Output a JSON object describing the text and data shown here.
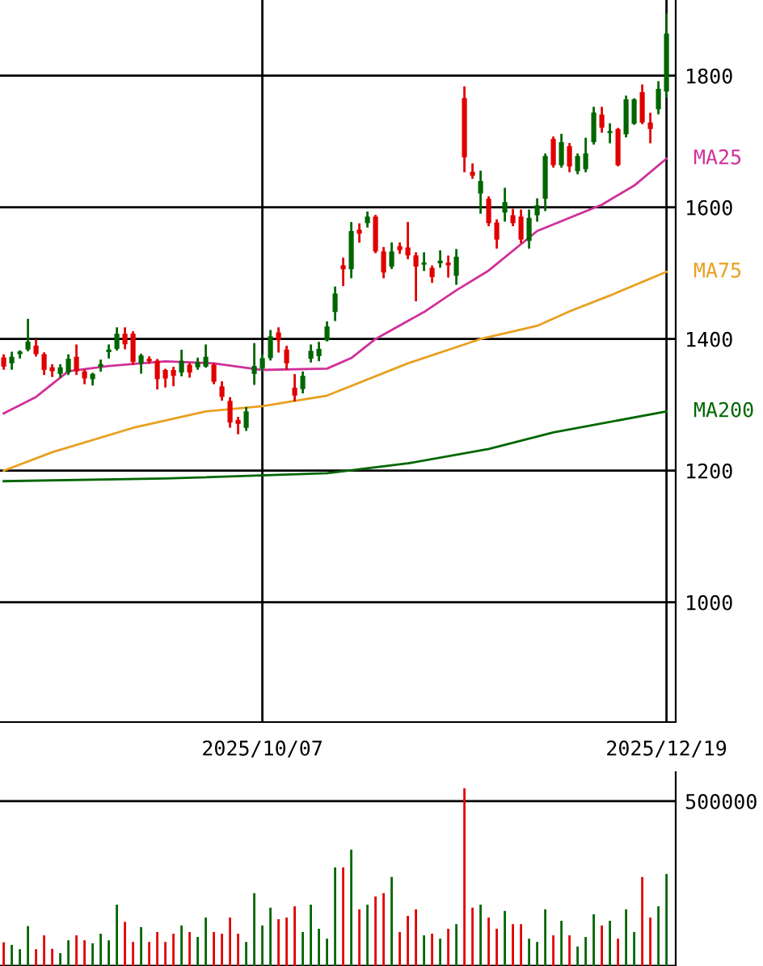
{
  "chart_data": [
    {
      "type": "candlestick",
      "categories": [
        null,
        null,
        null,
        null,
        null,
        null,
        null,
        null,
        null,
        null,
        null,
        null,
        null,
        null,
        null,
        null,
        null,
        null,
        null,
        null,
        null,
        null,
        null,
        null,
        null,
        null,
        null,
        null,
        null,
        null,
        null,
        null,
        "2025/10/07",
        null,
        null,
        null,
        null,
        null,
        null,
        null,
        null,
        null,
        null,
        null,
        null,
        null,
        null,
        null,
        null,
        null,
        null,
        null,
        null,
        null,
        null,
        null,
        null,
        null,
        null,
        null,
        null,
        null,
        null,
        null,
        null,
        null,
        null,
        null,
        null,
        null,
        null,
        null,
        null,
        null,
        null,
        null,
        null,
        null,
        null,
        null,
        null,
        null,
        "2025/12/19"
      ],
      "ohlc": [
        [
          1372,
          1375,
          1355,
          1358
        ],
        [
          1363,
          1379,
          1355,
          1373
        ],
        [
          1377,
          1381,
          1372,
          1381
        ],
        [
          1384,
          1429,
          1383,
          1396
        ],
        [
          1390,
          1398,
          1375,
          1377
        ],
        [
          1377,
          1378,
          1347,
          1353
        ],
        [
          1357,
          1360,
          1344,
          1351
        ],
        [
          1347,
          1360,
          1343,
          1357
        ],
        [
          1349,
          1375,
          1347,
          1370
        ],
        [
          1373,
          1390,
          1347,
          1351
        ],
        [
          1351,
          1352,
          1333,
          1340
        ],
        [
          1339,
          1347,
          1331,
          1347
        ],
        [
          1358,
          1367,
          1352,
          1362
        ],
        [
          1380,
          1390,
          1372,
          1384
        ],
        [
          1385,
          1416,
          1384,
          1408
        ],
        [
          1408,
          1416,
          1386,
          1392
        ],
        [
          1408,
          1410,
          1362,
          1365
        ],
        [
          1363,
          1376,
          1349,
          1375
        ],
        [
          1370,
          1372,
          1364,
          1366
        ],
        [
          1367,
          1368,
          1325,
          1339
        ],
        [
          1353,
          1353,
          1328,
          1340
        ],
        [
          1353,
          1356,
          1330,
          1344
        ],
        [
          1349,
          1382,
          1345,
          1367
        ],
        [
          1361,
          1362,
          1343,
          1349
        ],
        [
          1357,
          1370,
          1355,
          1365
        ],
        [
          1358,
          1390,
          1358,
          1373
        ],
        [
          1361,
          1362,
          1333,
          1335
        ],
        [
          1328,
          1334,
          1308,
          1312
        ],
        [
          1306,
          1310,
          1267,
          1273
        ],
        [
          1277,
          1280,
          1257,
          1271
        ],
        [
          1265,
          1295,
          1262,
          1290
        ],
        [
          1347,
          1392,
          1332,
          1359
        ],
        [
          1355,
          1375,
          1352,
          1371
        ],
        [
          1371,
          1412,
          1369,
          1404
        ],
        [
          1410,
          1416,
          1381,
          1398
        ],
        [
          1384,
          1388,
          1355,
          1363
        ],
        [
          1326,
          1345,
          1307,
          1314
        ],
        [
          1324,
          1349,
          1319,
          1344
        ],
        [
          1370,
          1390,
          1366,
          1382
        ],
        [
          1374,
          1394,
          1368,
          1385
        ],
        [
          1398,
          1425,
          1398,
          1419
        ],
        [
          1441,
          1478,
          1429,
          1469
        ],
        [
          1512,
          1522,
          1482,
          1506
        ],
        [
          1506,
          1576,
          1494,
          1564
        ],
        [
          1566,
          1574,
          1548,
          1560
        ],
        [
          1576,
          1592,
          1571,
          1586
        ],
        [
          1586,
          1587,
          1532,
          1533
        ],
        [
          1533,
          1538,
          1494,
          1501
        ],
        [
          1510,
          1545,
          1508,
          1533
        ],
        [
          1541,
          1545,
          1531,
          1535
        ],
        [
          1539,
          1576,
          1523,
          1527
        ],
        [
          1527,
          1530,
          1459,
          1510
        ],
        [
          1513,
          1530,
          1505,
          1516
        ],
        [
          1508,
          1510,
          1487,
          1494
        ],
        [
          1515,
          1533,
          1510,
          1519
        ],
        [
          1516,
          1525,
          1495,
          1512
        ],
        [
          1496,
          1535,
          1484,
          1525
        ],
        [
          1766,
          1782,
          1655,
          1676
        ],
        [
          1654,
          1665,
          1645,
          1648
        ],
        [
          1621,
          1654,
          1592,
          1640
        ],
        [
          1613,
          1615,
          1573,
          1576
        ],
        [
          1577,
          1580,
          1539,
          1551
        ],
        [
          1592,
          1628,
          1580,
          1608
        ],
        [
          1588,
          1596,
          1573,
          1576
        ],
        [
          1586,
          1595,
          1547,
          1551
        ],
        [
          1549,
          1595,
          1539,
          1584
        ],
        [
          1588,
          1612,
          1580,
          1603
        ],
        [
          1613,
          1680,
          1596,
          1678
        ],
        [
          1704,
          1706,
          1662,
          1664
        ],
        [
          1664,
          1710,
          1662,
          1699
        ],
        [
          1693,
          1696,
          1655,
          1662
        ],
        [
          1655,
          1680,
          1652,
          1678
        ],
        [
          1658,
          1704,
          1655,
          1682
        ],
        [
          1699,
          1751,
          1697,
          1744
        ],
        [
          1741,
          1751,
          1715,
          1721
        ],
        [
          1713,
          1726,
          1699,
          1716
        ],
        [
          1719,
          1719,
          1664,
          1664
        ],
        [
          1711,
          1768,
          1708,
          1764
        ],
        [
          1727,
          1764,
          1727,
          1764
        ],
        [
          1775,
          1785,
          1728,
          1729
        ],
        [
          1729,
          1742,
          1699,
          1719
        ],
        [
          1749,
          1790,
          1743,
          1780
        ],
        [
          1776,
          1893,
          1768,
          1864
        ]
      ],
      "colors": [
        "#e00000",
        "#006600",
        "#006600",
        "#006600",
        "#e00000",
        "#e00000",
        "#e00000",
        "#006600",
        "#006600",
        "#e00000",
        "#e00000",
        "#006600",
        "#006600",
        "#006600",
        "#006600",
        "#e00000",
        "#e00000",
        "#006600",
        "#e00000",
        "#e00000",
        "#e00000",
        "#e00000",
        "#006600",
        "#e00000",
        "#006600",
        "#006600",
        "#e00000",
        "#e00000",
        "#e00000",
        "#e00000",
        "#006600",
        "#006600",
        "#006600",
        "#006600",
        "#e00000",
        "#e00000",
        "#e00000",
        "#006600",
        "#006600",
        "#006600",
        "#006600",
        "#006600",
        "#e00000",
        "#006600",
        "#e00000",
        "#006600",
        "#e00000",
        "#e00000",
        "#006600",
        "#e00000",
        "#e00000",
        "#e00000",
        "#006600",
        "#e00000",
        "#006600",
        "#e00000",
        "#006600",
        "#e00000",
        "#e00000",
        "#006600",
        "#e00000",
        "#e00000",
        "#006600",
        "#e00000",
        "#e00000",
        "#006600",
        "#006600",
        "#006600",
        "#e00000",
        "#006600",
        "#e00000",
        "#006600",
        "#006600",
        "#006600",
        "#e00000",
        "#006600",
        "#e00000",
        "#006600",
        "#006600",
        "#e00000",
        "#e00000",
        "#006600",
        "#006600"
      ],
      "series": [
        {
          "name": "MA25",
          "type": "line",
          "color": "#d0309a",
          "values": [
            1287,
            null,
            null,
            null,
            1312,
            null,
            null,
            null,
            1351,
            null,
            null,
            null,
            null,
            1359,
            null,
            null,
            null,
            null,
            null,
            null,
            1366,
            null,
            null,
            null,
            null,
            null,
            1363,
            null,
            null,
            null,
            null,
            null,
            1353,
            null,
            null,
            null,
            null,
            null,
            null,
            null,
            1355,
            null,
            null,
            1371,
            null,
            null,
            1400,
            null,
            null,
            null,
            null,
            null,
            1441,
            null,
            null,
            null,
            1474,
            null,
            null,
            null,
            1504,
            null,
            null,
            null,
            null,
            null,
            1564,
            null,
            null,
            null,
            null,
            null,
            null,
            null,
            1604,
            null,
            null,
            null,
            1633,
            null,
            null,
            null,
            1674
          ]
        },
        {
          "name": "MA75",
          "type": "line",
          "color": "#e8a020",
          "values": [
            1200,
            null,
            null,
            null,
            null,
            null,
            1228,
            null,
            null,
            null,
            null,
            null,
            null,
            null,
            null,
            null,
            1265,
            null,
            null,
            null,
            null,
            null,
            null,
            null,
            null,
            1290,
            null,
            null,
            null,
            null,
            null,
            null,
            1298,
            null,
            null,
            null,
            null,
            null,
            null,
            null,
            1314,
            null,
            null,
            null,
            null,
            null,
            null,
            null,
            null,
            null,
            1363,
            null,
            null,
            null,
            null,
            null,
            null,
            null,
            null,
            1400,
            null,
            null,
            null,
            null,
            null,
            null,
            1420,
            null,
            null,
            null,
            1442,
            null,
            null,
            null,
            null,
            1466,
            null,
            null,
            null,
            null,
            null,
            null,
            1502
          ]
        },
        {
          "name": "MA200",
          "type": "line",
          "color": "#006600",
          "values": [
            1184,
            null,
            null,
            null,
            null,
            null,
            null,
            null,
            null,
            null,
            null,
            null,
            null,
            null,
            null,
            null,
            null,
            null,
            null,
            null,
            1188,
            null,
            null,
            null,
            null,
            null,
            null,
            null,
            null,
            null,
            null,
            null,
            null,
            null,
            null,
            null,
            null,
            null,
            null,
            null,
            1196,
            null,
            null,
            null,
            null,
            null,
            null,
            null,
            null,
            null,
            1211,
            null,
            null,
            null,
            null,
            null,
            null,
            null,
            null,
            null,
            1233,
            null,
            null,
            null,
            null,
            null,
            null,
            null,
            1258,
            null,
            null,
            null,
            null,
            null,
            null,
            null,
            null,
            null,
            null,
            null,
            null,
            null,
            1290
          ]
        }
      ],
      "ylim": [
        818,
        1915
      ],
      "yticks": [
        1000,
        1200,
        1400,
        1600,
        1800
      ],
      "grid": true
    },
    {
      "type": "bar",
      "categories": [
        null,
        null,
        null,
        null,
        null,
        null,
        null,
        null,
        null,
        null,
        null,
        null,
        null,
        null,
        null,
        null,
        null,
        null,
        null,
        null,
        null,
        null,
        null,
        null,
        null,
        null,
        null,
        null,
        null,
        null,
        null,
        null,
        "2025/10/07",
        null,
        null,
        null,
        null,
        null,
        null,
        null,
        null,
        null,
        null,
        null,
        null,
        null,
        null,
        null,
        null,
        null,
        null,
        null,
        null,
        null,
        null,
        null,
        null,
        null,
        null,
        null,
        null,
        null,
        null,
        null,
        null,
        null,
        null,
        null,
        null,
        null,
        null,
        null,
        null,
        null,
        null,
        null,
        null,
        null,
        null,
        null,
        null,
        null,
        "2025/12/19"
      ],
      "values": [
        72000,
        64000,
        51000,
        121000,
        51000,
        93000,
        52000,
        39000,
        78000,
        93000,
        78000,
        69000,
        98000,
        78000,
        186000,
        134000,
        73000,
        118000,
        73000,
        103000,
        73000,
        98000,
        123000,
        103000,
        88000,
        147000,
        103000,
        98000,
        147000,
        98000,
        73000,
        221000,
        123000,
        177000,
        142000,
        147000,
        181000,
        103000,
        186000,
        113000,
        83000,
        299000,
        299000,
        353000,
        172000,
        186000,
        211000,
        221000,
        270000,
        103000,
        152000,
        172000,
        93000,
        98000,
        83000,
        113000,
        127000,
        539000,
        177000,
        186000,
        147000,
        113000,
        167000,
        127000,
        127000,
        83000,
        73000,
        172000,
        93000,
        137000,
        93000,
        59000,
        88000,
        157000,
        123000,
        137000,
        83000,
        172000,
        103000,
        270000,
        147000,
        181000,
        279000
      ],
      "colors": [
        "#e00000",
        "#006600",
        "#006600",
        "#006600",
        "#e00000",
        "#e00000",
        "#e00000",
        "#006600",
        "#006600",
        "#e00000",
        "#e00000",
        "#006600",
        "#006600",
        "#006600",
        "#006600",
        "#e00000",
        "#e00000",
        "#006600",
        "#e00000",
        "#e00000",
        "#e00000",
        "#e00000",
        "#006600",
        "#e00000",
        "#006600",
        "#006600",
        "#e00000",
        "#e00000",
        "#e00000",
        "#e00000",
        "#006600",
        "#006600",
        "#006600",
        "#006600",
        "#e00000",
        "#e00000",
        "#e00000",
        "#006600",
        "#006600",
        "#006600",
        "#006600",
        "#006600",
        "#e00000",
        "#006600",
        "#e00000",
        "#006600",
        "#e00000",
        "#e00000",
        "#006600",
        "#e00000",
        "#e00000",
        "#e00000",
        "#006600",
        "#e00000",
        "#006600",
        "#e00000",
        "#006600",
        "#e00000",
        "#e00000",
        "#006600",
        "#e00000",
        "#e00000",
        "#006600",
        "#e00000",
        "#e00000",
        "#006600",
        "#006600",
        "#006600",
        "#e00000",
        "#006600",
        "#e00000",
        "#006600",
        "#006600",
        "#006600",
        "#e00000",
        "#006600",
        "#e00000",
        "#006600",
        "#006600",
        "#e00000",
        "#e00000",
        "#006600",
        "#006600"
      ],
      "ylim": [
        0,
        588000
      ],
      "yticks": [
        {
          "value": 0,
          "label": null
        },
        500000
      ],
      "grid": "y",
      "tick_labels": "y"
    }
  ]
}
